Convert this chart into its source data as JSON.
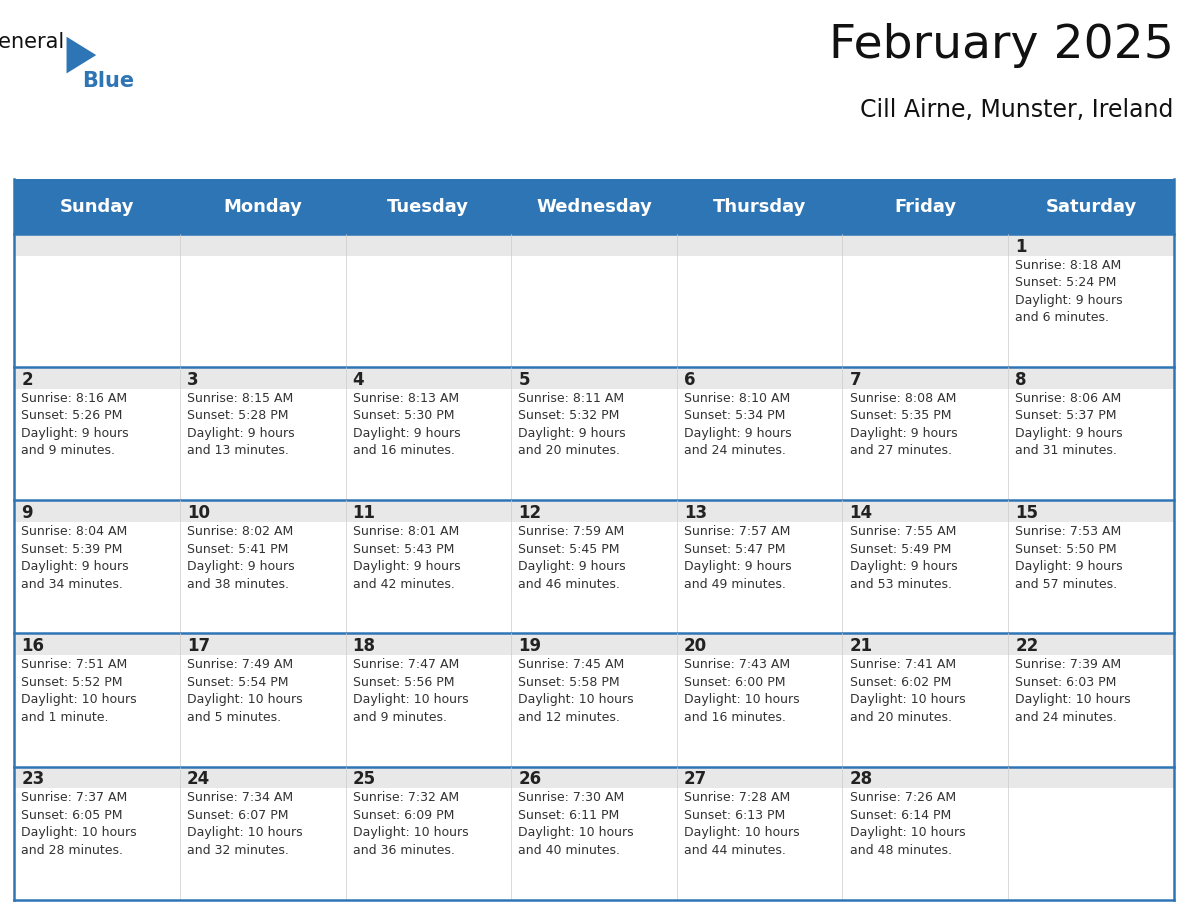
{
  "title": "February 2025",
  "subtitle": "Cill Airne, Munster, Ireland",
  "days_of_week": [
    "Sunday",
    "Monday",
    "Tuesday",
    "Wednesday",
    "Thursday",
    "Friday",
    "Saturday"
  ],
  "header_bg": "#2E75B6",
  "header_text": "#FFFFFF",
  "day_strip_bg": "#E8E8E8",
  "cell_bg": "#FFFFFF",
  "grid_line_color": "#2E75B6",
  "day_number_color": "#222222",
  "cell_text_color": "#333333",
  "calendar_data": [
    [
      null,
      null,
      null,
      null,
      null,
      null,
      {
        "day": 1,
        "sunrise": "8:18 AM",
        "sunset": "5:24 PM",
        "daylight": "9 hours\nand 6 minutes."
      }
    ],
    [
      {
        "day": 2,
        "sunrise": "8:16 AM",
        "sunset": "5:26 PM",
        "daylight": "9 hours\nand 9 minutes."
      },
      {
        "day": 3,
        "sunrise": "8:15 AM",
        "sunset": "5:28 PM",
        "daylight": "9 hours\nand 13 minutes."
      },
      {
        "day": 4,
        "sunrise": "8:13 AM",
        "sunset": "5:30 PM",
        "daylight": "9 hours\nand 16 minutes."
      },
      {
        "day": 5,
        "sunrise": "8:11 AM",
        "sunset": "5:32 PM",
        "daylight": "9 hours\nand 20 minutes."
      },
      {
        "day": 6,
        "sunrise": "8:10 AM",
        "sunset": "5:34 PM",
        "daylight": "9 hours\nand 24 minutes."
      },
      {
        "day": 7,
        "sunrise": "8:08 AM",
        "sunset": "5:35 PM",
        "daylight": "9 hours\nand 27 minutes."
      },
      {
        "day": 8,
        "sunrise": "8:06 AM",
        "sunset": "5:37 PM",
        "daylight": "9 hours\nand 31 minutes."
      }
    ],
    [
      {
        "day": 9,
        "sunrise": "8:04 AM",
        "sunset": "5:39 PM",
        "daylight": "9 hours\nand 34 minutes."
      },
      {
        "day": 10,
        "sunrise": "8:02 AM",
        "sunset": "5:41 PM",
        "daylight": "9 hours\nand 38 minutes."
      },
      {
        "day": 11,
        "sunrise": "8:01 AM",
        "sunset": "5:43 PM",
        "daylight": "9 hours\nand 42 minutes."
      },
      {
        "day": 12,
        "sunrise": "7:59 AM",
        "sunset": "5:45 PM",
        "daylight": "9 hours\nand 46 minutes."
      },
      {
        "day": 13,
        "sunrise": "7:57 AM",
        "sunset": "5:47 PM",
        "daylight": "9 hours\nand 49 minutes."
      },
      {
        "day": 14,
        "sunrise": "7:55 AM",
        "sunset": "5:49 PM",
        "daylight": "9 hours\nand 53 minutes."
      },
      {
        "day": 15,
        "sunrise": "7:53 AM",
        "sunset": "5:50 PM",
        "daylight": "9 hours\nand 57 minutes."
      }
    ],
    [
      {
        "day": 16,
        "sunrise": "7:51 AM",
        "sunset": "5:52 PM",
        "daylight": "10 hours\nand 1 minute."
      },
      {
        "day": 17,
        "sunrise": "7:49 AM",
        "sunset": "5:54 PM",
        "daylight": "10 hours\nand 5 minutes."
      },
      {
        "day": 18,
        "sunrise": "7:47 AM",
        "sunset": "5:56 PM",
        "daylight": "10 hours\nand 9 minutes."
      },
      {
        "day": 19,
        "sunrise": "7:45 AM",
        "sunset": "5:58 PM",
        "daylight": "10 hours\nand 12 minutes."
      },
      {
        "day": 20,
        "sunrise": "7:43 AM",
        "sunset": "6:00 PM",
        "daylight": "10 hours\nand 16 minutes."
      },
      {
        "day": 21,
        "sunrise": "7:41 AM",
        "sunset": "6:02 PM",
        "daylight": "10 hours\nand 20 minutes."
      },
      {
        "day": 22,
        "sunrise": "7:39 AM",
        "sunset": "6:03 PM",
        "daylight": "10 hours\nand 24 minutes."
      }
    ],
    [
      {
        "day": 23,
        "sunrise": "7:37 AM",
        "sunset": "6:05 PM",
        "daylight": "10 hours\nand 28 minutes."
      },
      {
        "day": 24,
        "sunrise": "7:34 AM",
        "sunset": "6:07 PM",
        "daylight": "10 hours\nand 32 minutes."
      },
      {
        "day": 25,
        "sunrise": "7:32 AM",
        "sunset": "6:09 PM",
        "daylight": "10 hours\nand 36 minutes."
      },
      {
        "day": 26,
        "sunrise": "7:30 AM",
        "sunset": "6:11 PM",
        "daylight": "10 hours\nand 40 minutes."
      },
      {
        "day": 27,
        "sunrise": "7:28 AM",
        "sunset": "6:13 PM",
        "daylight": "10 hours\nand 44 minutes."
      },
      {
        "day": 28,
        "sunrise": "7:26 AM",
        "sunset": "6:14 PM",
        "daylight": "10 hours\nand 48 minutes."
      },
      null
    ]
  ]
}
